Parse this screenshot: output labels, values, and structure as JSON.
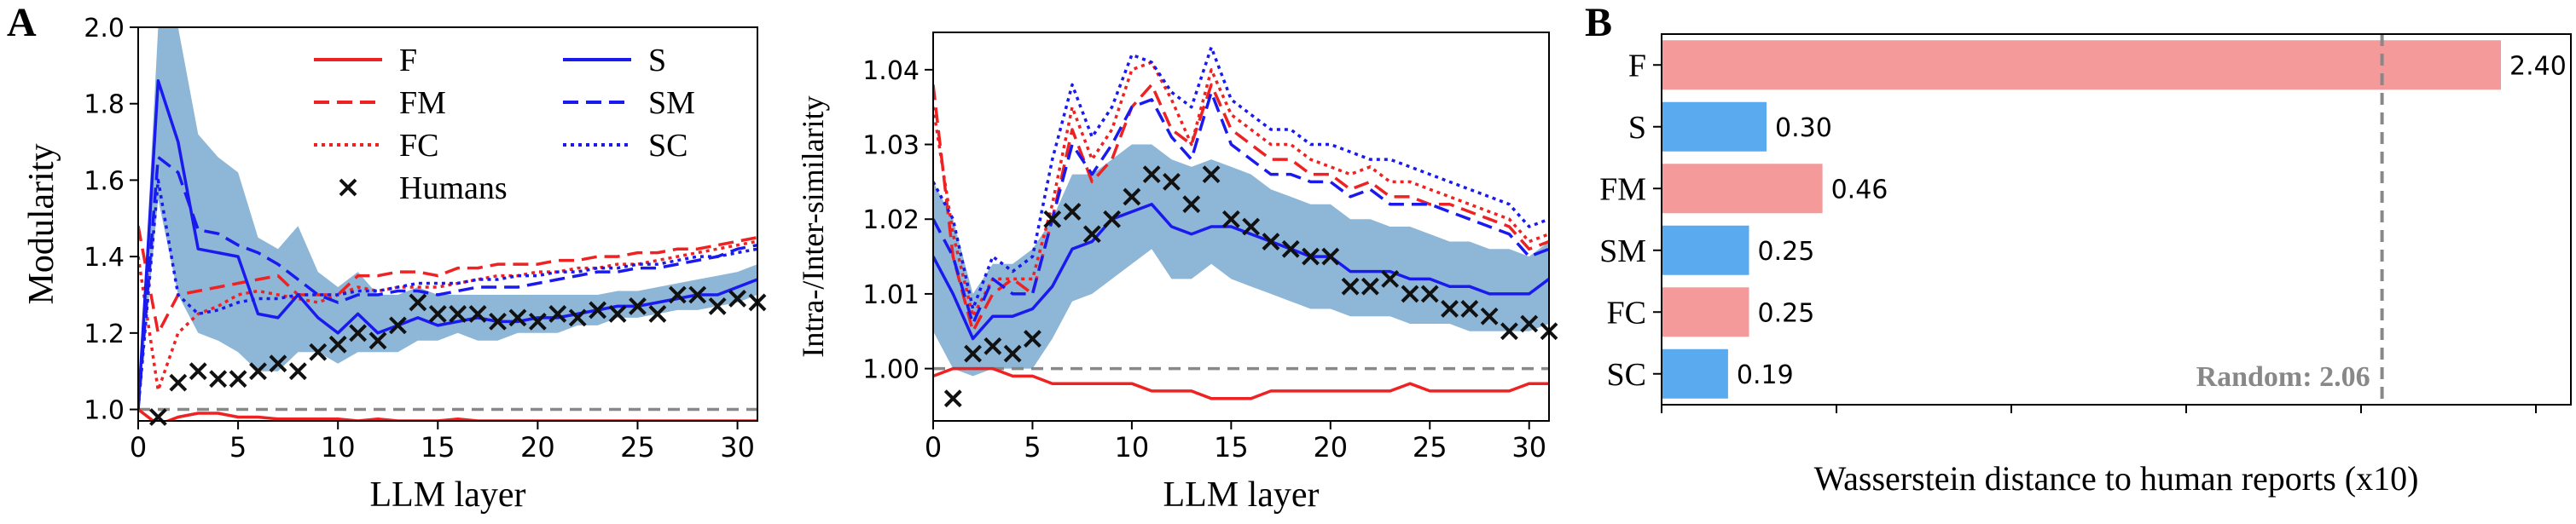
{
  "panel_labels": [
    "A",
    "B"
  ],
  "colors": {
    "red": "#ee2222",
    "blue": "#1a1aee",
    "band": "#7aa9d0",
    "human": "#111111",
    "bar_red": "#f49a9a",
    "bar_blue": "#5aaaf0",
    "ref": "#888888"
  },
  "chart_data": [
    {
      "type": "line",
      "panel": "A",
      "xlabel": "LLM layer",
      "ylabel": "Modularity",
      "xlim": [
        0,
        31
      ],
      "ylim": [
        0.97,
        2.0
      ],
      "xticks": [
        0,
        5,
        10,
        15,
        20,
        25,
        30
      ],
      "yticks": [
        1.0,
        1.2,
        1.4,
        1.6,
        1.8,
        2.0
      ],
      "ytick_labels": [
        "1.0",
        "1.2",
        "1.4",
        "1.6",
        "1.8",
        "2.0"
      ],
      "reference_line": 1.0,
      "legend": {
        "position": "top",
        "columns": 2,
        "items": [
          "F",
          "FM",
          "FC",
          "Humans",
          "S",
          "SM",
          "SC"
        ]
      },
      "x": [
        0,
        1,
        2,
        3,
        4,
        5,
        6,
        7,
        8,
        9,
        10,
        11,
        12,
        13,
        14,
        15,
        16,
        17,
        18,
        19,
        20,
        21,
        22,
        23,
        24,
        25,
        26,
        27,
        28,
        29,
        30,
        31
      ],
      "series": [
        {
          "name": "F",
          "color": "red",
          "dash": "solid",
          "values": [
            1.0,
            0.96,
            0.98,
            0.99,
            0.99,
            0.98,
            0.98,
            0.975,
            0.975,
            0.975,
            0.975,
            0.97,
            0.975,
            0.97,
            0.97,
            0.97,
            0.975,
            0.97,
            0.97,
            0.97,
            0.97,
            0.97,
            0.97,
            0.97,
            0.97,
            0.97,
            0.97,
            0.97,
            0.97,
            0.97,
            0.97,
            0.97
          ]
        },
        {
          "name": "FM",
          "color": "red",
          "dash": "dashed",
          "values": [
            1.48,
            1.2,
            1.3,
            1.31,
            1.32,
            1.33,
            1.34,
            1.35,
            1.3,
            1.3,
            1.3,
            1.35,
            1.35,
            1.36,
            1.36,
            1.35,
            1.37,
            1.37,
            1.38,
            1.38,
            1.38,
            1.39,
            1.39,
            1.4,
            1.4,
            1.41,
            1.41,
            1.42,
            1.42,
            1.43,
            1.44,
            1.45
          ]
        },
        {
          "name": "FC",
          "color": "red",
          "dash": "dotted",
          "values": [
            1.4,
            1.05,
            1.2,
            1.25,
            1.27,
            1.3,
            1.31,
            1.3,
            1.29,
            1.28,
            1.3,
            1.32,
            1.31,
            1.32,
            1.32,
            1.32,
            1.33,
            1.34,
            1.35,
            1.35,
            1.36,
            1.36,
            1.37,
            1.37,
            1.38,
            1.38,
            1.39,
            1.4,
            1.41,
            1.42,
            1.43,
            1.44
          ]
        },
        {
          "name": "S",
          "color": "blue",
          "dash": "solid",
          "values": [
            1.0,
            1.86,
            1.7,
            1.42,
            1.41,
            1.4,
            1.25,
            1.24,
            1.3,
            1.24,
            1.2,
            1.25,
            1.2,
            1.22,
            1.24,
            1.22,
            1.23,
            1.24,
            1.23,
            1.23,
            1.24,
            1.24,
            1.25,
            1.26,
            1.27,
            1.27,
            1.28,
            1.29,
            1.3,
            1.3,
            1.32,
            1.34
          ]
        },
        {
          "name": "SM",
          "color": "blue",
          "dash": "dashed",
          "values": [
            1.0,
            1.66,
            1.62,
            1.47,
            1.46,
            1.43,
            1.41,
            1.38,
            1.34,
            1.3,
            1.28,
            1.3,
            1.3,
            1.31,
            1.31,
            1.3,
            1.31,
            1.32,
            1.32,
            1.32,
            1.33,
            1.34,
            1.35,
            1.36,
            1.36,
            1.37,
            1.37,
            1.38,
            1.39,
            1.4,
            1.42,
            1.43
          ]
        },
        {
          "name": "SC",
          "color": "blue",
          "dash": "dotted",
          "values": [
            1.0,
            1.6,
            1.3,
            1.25,
            1.26,
            1.28,
            1.29,
            1.29,
            1.3,
            1.3,
            1.3,
            1.31,
            1.31,
            1.32,
            1.33,
            1.33,
            1.33,
            1.34,
            1.34,
            1.35,
            1.35,
            1.36,
            1.36,
            1.37,
            1.37,
            1.38,
            1.38,
            1.39,
            1.4,
            1.4,
            1.41,
            1.42
          ]
        },
        {
          "name": "Humans",
          "color": "human",
          "marker": "x",
          "x": [
            1,
            2,
            3,
            4,
            5,
            6,
            7,
            8,
            9,
            10,
            11,
            12,
            13,
            14,
            15,
            16,
            17,
            18,
            19,
            20,
            21,
            22,
            23,
            24,
            25,
            26,
            27,
            28,
            29,
            30,
            31
          ],
          "values": [
            0.98,
            1.07,
            1.1,
            1.08,
            1.08,
            1.1,
            1.12,
            1.1,
            1.15,
            1.17,
            1.2,
            1.18,
            1.22,
            1.28,
            1.25,
            1.25,
            1.25,
            1.23,
            1.24,
            1.23,
            1.25,
            1.24,
            1.26,
            1.25,
            1.27,
            1.25,
            1.3,
            1.3,
            1.27,
            1.29,
            1.28
          ]
        }
      ],
      "band": {
        "series": "S",
        "lower": [
          1.0,
          1.55,
          1.3,
          1.2,
          1.18,
          1.15,
          1.1,
          1.1,
          1.15,
          1.15,
          1.12,
          1.15,
          1.15,
          1.15,
          1.18,
          1.18,
          1.2,
          1.18,
          1.18,
          1.2,
          1.2,
          1.2,
          1.22,
          1.22,
          1.24,
          1.24,
          1.25,
          1.26,
          1.26,
          1.27,
          1.28,
          1.3
        ],
        "upper": [
          1.0,
          2.0,
          2.0,
          1.72,
          1.66,
          1.62,
          1.45,
          1.42,
          1.48,
          1.36,
          1.32,
          1.36,
          1.3,
          1.3,
          1.32,
          1.3,
          1.3,
          1.3,
          1.3,
          1.3,
          1.3,
          1.3,
          1.3,
          1.3,
          1.31,
          1.31,
          1.32,
          1.33,
          1.34,
          1.35,
          1.36,
          1.38
        ]
      }
    },
    {
      "type": "line",
      "panel": "A2",
      "xlabel": "LLM layer",
      "ylabel": "Intra-/Inter-similarity",
      "xlim": [
        0,
        31
      ],
      "ylim": [
        0.993,
        1.045
      ],
      "xticks": [
        0,
        5,
        10,
        15,
        20,
        25,
        30
      ],
      "yticks": [
        1.0,
        1.01,
        1.02,
        1.03,
        1.04
      ],
      "ytick_labels": [
        "1.00",
        "1.01",
        "1.02",
        "1.03",
        "1.04"
      ],
      "reference_line": 1.0,
      "x": [
        0,
        1,
        2,
        3,
        4,
        5,
        6,
        7,
        8,
        9,
        10,
        11,
        12,
        13,
        14,
        15,
        16,
        17,
        18,
        19,
        20,
        21,
        22,
        23,
        24,
        25,
        26,
        27,
        28,
        29,
        30,
        31
      ],
      "series": [
        {
          "name": "F",
          "color": "red",
          "dash": "solid",
          "values": [
            0.999,
            1.0,
            1.0,
            1.0,
            0.999,
            0.999,
            0.998,
            0.998,
            0.998,
            0.998,
            0.998,
            0.997,
            0.997,
            0.997,
            0.996,
            0.996,
            0.996,
            0.997,
            0.997,
            0.997,
            0.997,
            0.997,
            0.997,
            0.997,
            0.998,
            0.997,
            0.997,
            0.997,
            0.997,
            0.997,
            0.998,
            0.998
          ]
        },
        {
          "name": "FM",
          "color": "red",
          "dash": "dashed",
          "values": [
            1.038,
            1.015,
            1.005,
            1.01,
            1.012,
            1.01,
            1.02,
            1.032,
            1.025,
            1.028,
            1.035,
            1.038,
            1.032,
            1.03,
            1.038,
            1.032,
            1.03,
            1.028,
            1.028,
            1.026,
            1.026,
            1.024,
            1.025,
            1.023,
            1.023,
            1.022,
            1.022,
            1.021,
            1.02,
            1.019,
            1.016,
            1.017
          ]
        },
        {
          "name": "FC",
          "color": "red",
          "dash": "dotted",
          "values": [
            1.035,
            1.018,
            1.007,
            1.012,
            1.012,
            1.012,
            1.022,
            1.035,
            1.028,
            1.032,
            1.04,
            1.041,
            1.036,
            1.03,
            1.04,
            1.034,
            1.032,
            1.03,
            1.03,
            1.028,
            1.027,
            1.026,
            1.027,
            1.025,
            1.025,
            1.024,
            1.023,
            1.022,
            1.021,
            1.02,
            1.017,
            1.018
          ]
        },
        {
          "name": "S",
          "color": "blue",
          "dash": "solid",
          "values": [
            1.015,
            1.01,
            1.004,
            1.007,
            1.007,
            1.008,
            1.011,
            1.016,
            1.017,
            1.02,
            1.021,
            1.022,
            1.019,
            1.018,
            1.019,
            1.019,
            1.018,
            1.017,
            1.016,
            1.015,
            1.015,
            1.013,
            1.013,
            1.013,
            1.012,
            1.012,
            1.011,
            1.011,
            1.01,
            1.01,
            1.01,
            1.012
          ]
        },
        {
          "name": "SM",
          "color": "blue",
          "dash": "dashed",
          "values": [
            1.02,
            1.015,
            1.006,
            1.012,
            1.01,
            1.01,
            1.02,
            1.03,
            1.026,
            1.03,
            1.035,
            1.036,
            1.031,
            1.028,
            1.037,
            1.03,
            1.028,
            1.026,
            1.026,
            1.025,
            1.025,
            1.023,
            1.024,
            1.022,
            1.022,
            1.022,
            1.021,
            1.02,
            1.019,
            1.018,
            1.015,
            1.016
          ]
        },
        {
          "name": "SC",
          "color": "blue",
          "dash": "dotted",
          "values": [
            1.025,
            1.02,
            1.008,
            1.015,
            1.013,
            1.015,
            1.028,
            1.038,
            1.031,
            1.035,
            1.042,
            1.041,
            1.037,
            1.035,
            1.043,
            1.036,
            1.034,
            1.032,
            1.032,
            1.03,
            1.03,
            1.029,
            1.028,
            1.028,
            1.027,
            1.026,
            1.025,
            1.024,
            1.023,
            1.022,
            1.019,
            1.02
          ]
        },
        {
          "name": "Humans",
          "color": "human",
          "marker": "x",
          "x": [
            1,
            2,
            3,
            4,
            5,
            6,
            7,
            8,
            9,
            10,
            11,
            12,
            13,
            14,
            15,
            16,
            17,
            18,
            19,
            20,
            21,
            22,
            23,
            24,
            25,
            26,
            27,
            28,
            29,
            30,
            31
          ],
          "values": [
            0.996,
            1.002,
            1.003,
            1.002,
            1.004,
            1.02,
            1.021,
            1.018,
            1.02,
            1.023,
            1.026,
            1.025,
            1.022,
            1.026,
            1.02,
            1.019,
            1.017,
            1.016,
            1.015,
            1.015,
            1.011,
            1.011,
            1.012,
            1.01,
            1.01,
            1.008,
            1.008,
            1.007,
            1.005,
            1.006,
            1.005
          ]
        }
      ],
      "band": {
        "series": "S",
        "lower": [
          1.005,
          1.0,
          0.999,
          1.0,
          1.0,
          1.0,
          1.004,
          1.009,
          1.01,
          1.012,
          1.014,
          1.016,
          1.012,
          1.012,
          1.014,
          1.012,
          1.011,
          1.01,
          1.009,
          1.008,
          1.008,
          1.007,
          1.007,
          1.007,
          1.006,
          1.006,
          1.006,
          1.005,
          1.005,
          1.005,
          1.005,
          1.006
        ],
        "upper": [
          1.025,
          1.02,
          1.01,
          1.014,
          1.014,
          1.016,
          1.02,
          1.026,
          1.026,
          1.028,
          1.03,
          1.03,
          1.028,
          1.027,
          1.028,
          1.027,
          1.026,
          1.024,
          1.023,
          1.022,
          1.022,
          1.02,
          1.02,
          1.019,
          1.019,
          1.018,
          1.017,
          1.017,
          1.016,
          1.016,
          1.015,
          1.017
        ]
      }
    },
    {
      "type": "bar",
      "orientation": "horizontal",
      "panel": "B",
      "xlabel": "Wasserstein distance to human reports (x10)",
      "ylabel": "",
      "xlim": [
        0,
        2.6
      ],
      "categories": [
        "F",
        "S",
        "FM",
        "SM",
        "FC",
        "SC"
      ],
      "values": [
        2.4,
        0.3,
        0.46,
        0.25,
        0.25,
        0.19
      ],
      "value_labels": [
        "2.40",
        "0.30",
        "0.46",
        "0.25",
        "0.25",
        "0.19"
      ],
      "bar_colors": [
        "bar_red",
        "bar_blue",
        "bar_red",
        "bar_blue",
        "bar_red",
        "bar_blue"
      ],
      "reference_line": {
        "value": 2.06,
        "label": "Random: 2.06"
      },
      "grid": false
    }
  ]
}
